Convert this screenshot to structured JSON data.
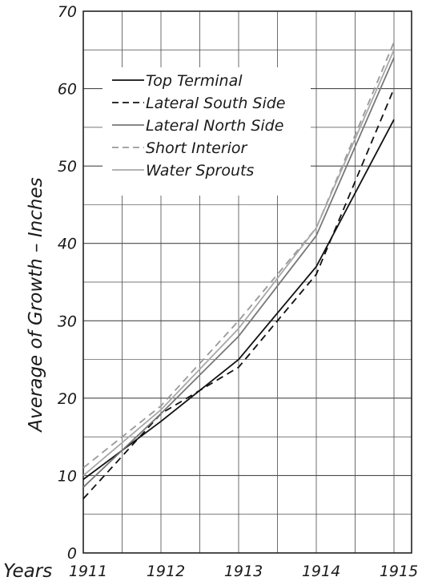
{
  "chart_data": {
    "type": "line",
    "ylabel": "Average of Growth – Inches",
    "xlabel": "Years",
    "x": [
      "1911",
      "1912",
      "1913",
      "1914",
      "1915"
    ],
    "ylim": [
      0,
      70
    ],
    "yticks": [
      0,
      10,
      20,
      30,
      40,
      50,
      60,
      70
    ],
    "grid": true,
    "legend_position": "top-left",
    "series": [
      {
        "name": "Top Terminal",
        "style": "solid",
        "color": "#111111",
        "values": [
          9.5,
          17,
          25,
          37,
          56
        ]
      },
      {
        "name": "Lateral South Side",
        "style": "dashed",
        "color": "#111111",
        "values": [
          7,
          18,
          24,
          36,
          60
        ]
      },
      {
        "name": "Lateral North Side",
        "style": "solid",
        "color": "#777777",
        "values": [
          8.5,
          18,
          28,
          41,
          64
        ]
      },
      {
        "name": "Short Interior",
        "style": "dashed",
        "color": "#999999",
        "values": [
          11,
          19,
          30,
          42,
          66
        ]
      },
      {
        "name": "Water Sprouts",
        "style": "solid",
        "color": "#a8a8a8",
        "values": [
          10,
          18.5,
          29,
          42,
          65
        ]
      }
    ]
  }
}
